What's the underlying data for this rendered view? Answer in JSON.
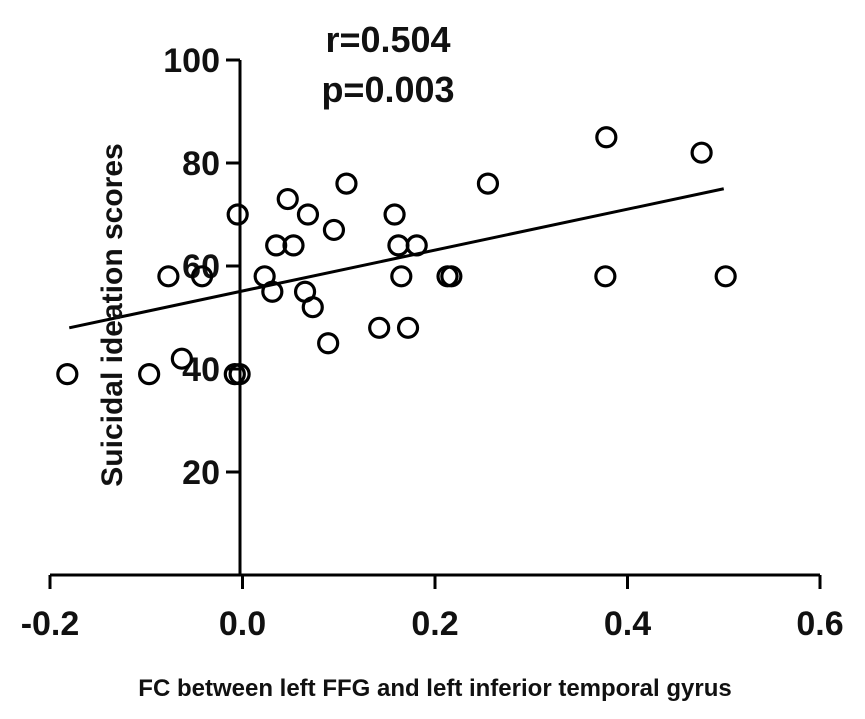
{
  "chart_data": {
    "type": "scatter",
    "title": "",
    "xlabel": "FC between left FFG and left inferior temporal gyrus",
    "ylabel": "Suicidal ideation scores",
    "xlim": [
      -0.2,
      0.6
    ],
    "ylim": [
      0,
      100
    ],
    "x_ticks": [
      -0.2,
      0.0,
      0.2,
      0.4,
      0.6
    ],
    "y_ticks": [
      20,
      40,
      60,
      80,
      100
    ],
    "x_tick_labels": [
      "-0.2",
      "0.0",
      "0.2",
      "0.4",
      "0.6"
    ],
    "y_tick_labels": [
      "20",
      "40",
      "60",
      "80",
      "100"
    ],
    "annotations": [
      "r=0.504",
      "p=0.003"
    ],
    "grid": false,
    "points": [
      {
        "x": -0.182,
        "y": 39
      },
      {
        "x": -0.097,
        "y": 39
      },
      {
        "x": -0.077,
        "y": 58
      },
      {
        "x": -0.063,
        "y": 42
      },
      {
        "x": -0.042,
        "y": 58
      },
      {
        "x": -0.008,
        "y": 39
      },
      {
        "x": -0.003,
        "y": 39
      },
      {
        "x": -0.005,
        "y": 70
      },
      {
        "x": 0.023,
        "y": 58
      },
      {
        "x": 0.031,
        "y": 55
      },
      {
        "x": 0.035,
        "y": 64
      },
      {
        "x": 0.047,
        "y": 73
      },
      {
        "x": 0.053,
        "y": 64
      },
      {
        "x": 0.065,
        "y": 55
      },
      {
        "x": 0.068,
        "y": 70
      },
      {
        "x": 0.073,
        "y": 52
      },
      {
        "x": 0.089,
        "y": 45
      },
      {
        "x": 0.095,
        "y": 67
      },
      {
        "x": 0.108,
        "y": 76
      },
      {
        "x": 0.142,
        "y": 48
      },
      {
        "x": 0.158,
        "y": 70
      },
      {
        "x": 0.162,
        "y": 64
      },
      {
        "x": 0.165,
        "y": 58
      },
      {
        "x": 0.172,
        "y": 48
      },
      {
        "x": 0.181,
        "y": 64
      },
      {
        "x": 0.213,
        "y": 58
      },
      {
        "x": 0.217,
        "y": 58
      },
      {
        "x": 0.255,
        "y": 76
      },
      {
        "x": 0.377,
        "y": 58
      },
      {
        "x": 0.378,
        "y": 85
      },
      {
        "x": 0.477,
        "y": 82
      },
      {
        "x": 0.502,
        "y": 58
      }
    ],
    "fit_line": {
      "x": [
        -0.18,
        0.5
      ],
      "y": [
        48,
        75
      ]
    }
  }
}
